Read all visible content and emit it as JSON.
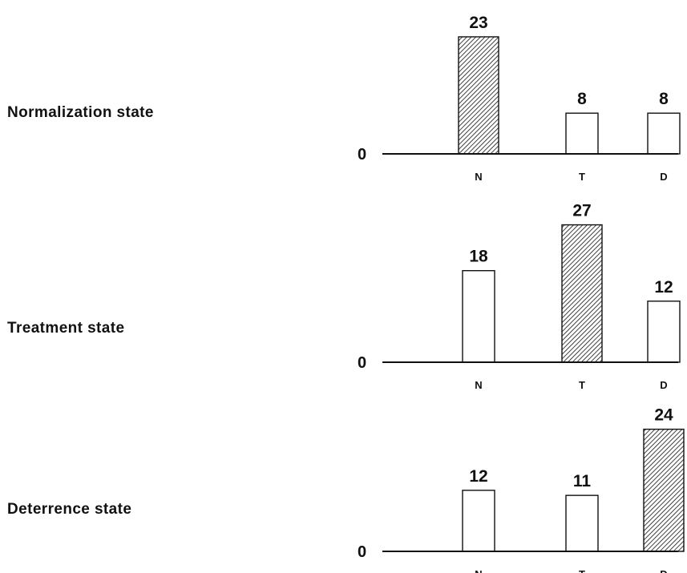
{
  "chart_data": [
    {
      "type": "bar",
      "label": "Normalization state",
      "zero_label": "0",
      "categories": [
        "N",
        "T",
        "D"
      ],
      "values": [
        23,
        8,
        8
      ],
      "highlighted": "N"
    },
    {
      "type": "bar",
      "label": "Treatment state",
      "zero_label": "0",
      "categories": [
        "N",
        "T",
        "D"
      ],
      "values": [
        18,
        27,
        12
      ],
      "highlighted": "T"
    },
    {
      "type": "bar",
      "label": "Deterrence state",
      "zero_label": "0",
      "categories": [
        "N",
        "T",
        "D"
      ],
      "values": [
        12,
        11,
        24
      ],
      "highlighted": "D"
    }
  ],
  "colors": {
    "ink": "#111111",
    "hatch_fill": "#ffffff",
    "plain_fill": "#ffffff"
  }
}
